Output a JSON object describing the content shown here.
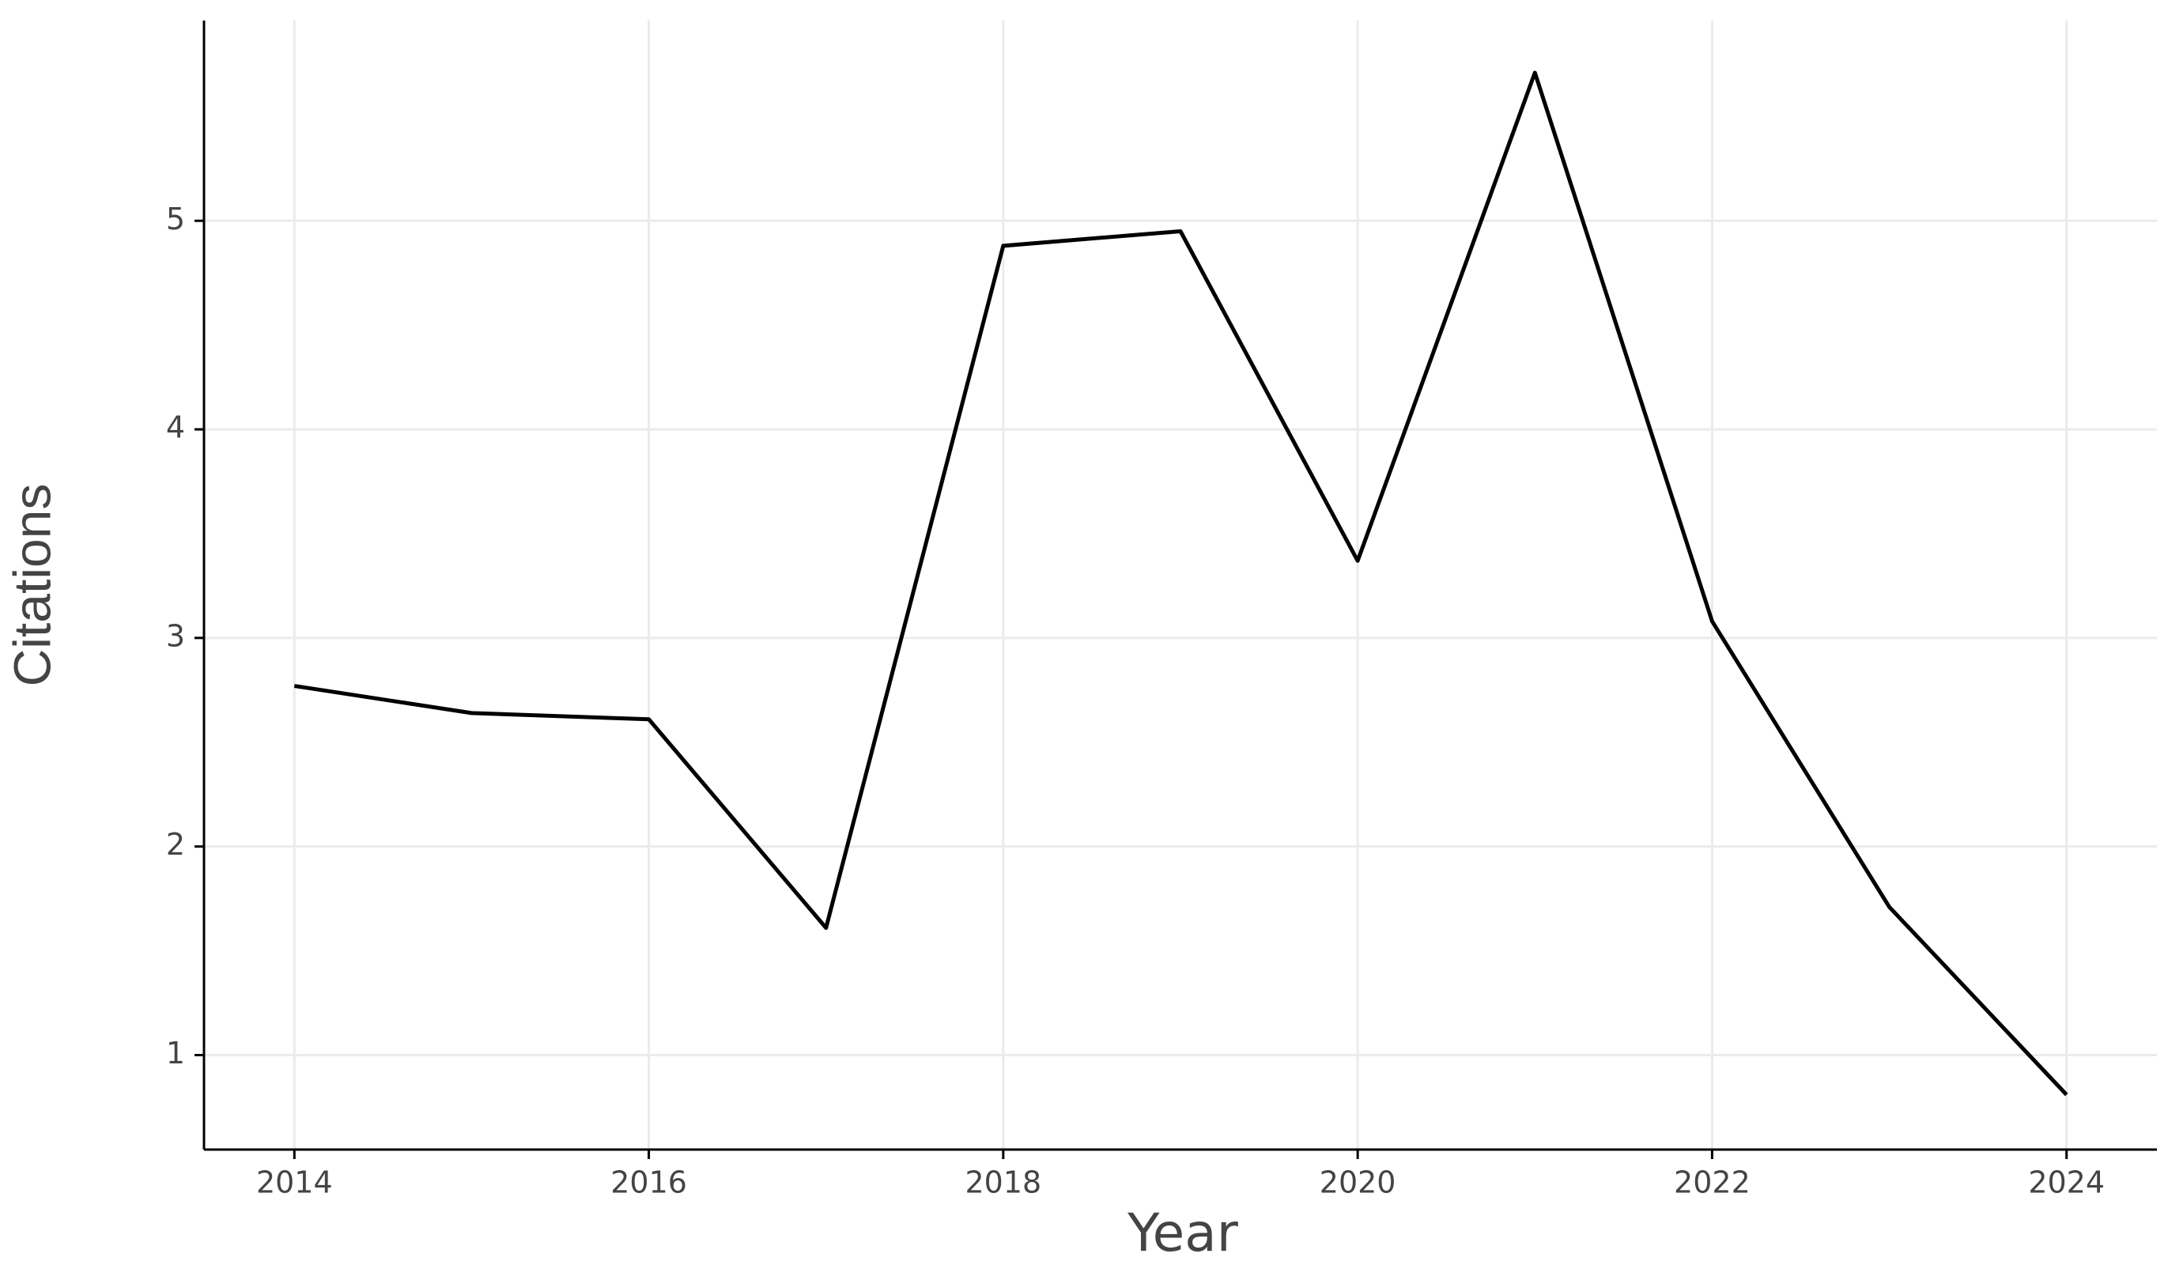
{
  "chart_data": {
    "type": "line",
    "x_label": "Year",
    "y_label": "Citations",
    "x": [
      2014,
      2015,
      2016,
      2017,
      2018,
      2019,
      2020,
      2021,
      2022,
      2023,
      2024
    ],
    "series": [
      {
        "color": "#000000",
        "values": [
          2.77,
          2.64,
          2.61,
          1.61,
          4.88,
          4.95,
          3.37,
          5.71,
          3.08,
          1.71,
          0.81
        ]
      }
    ],
    "xlim": [
      2013.49,
      2024.51
    ],
    "xticks": [
      2014,
      2016,
      2018,
      2020,
      2022,
      2024
    ],
    "ylim": [
      0.547,
      5.96
    ],
    "yticks": [
      1,
      2,
      3,
      4,
      5
    ],
    "grid": true
  }
}
